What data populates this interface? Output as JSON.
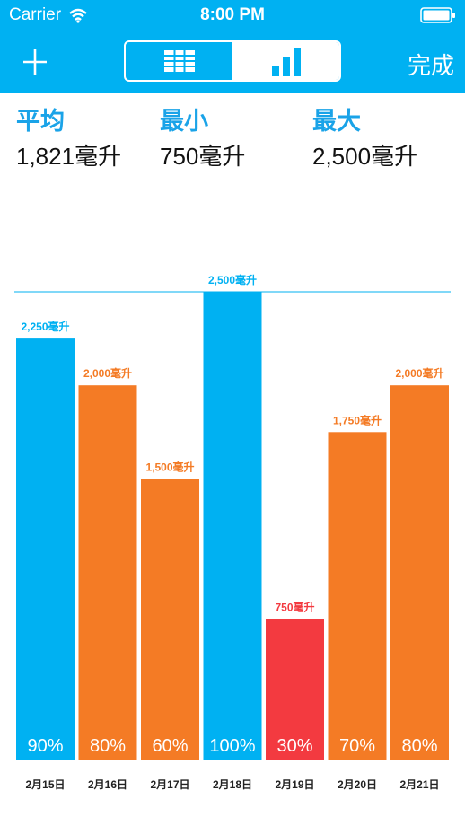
{
  "status_bar": {
    "carrier": "Carrier",
    "time": "8:00 PM",
    "icons": [
      "wifi-icon",
      "battery-icon"
    ]
  },
  "header": {
    "add_icon": "plus-icon",
    "segments": [
      {
        "name": "table-icon",
        "selected": false
      },
      {
        "name": "bar-chart-icon",
        "selected": true
      }
    ],
    "done_label": "完成",
    "background": "#00b1f2"
  },
  "stats": {
    "average": {
      "label": "平均",
      "value": "1,821毫升"
    },
    "min": {
      "label": "最小",
      "value": "750毫升"
    },
    "max": {
      "label": "最大",
      "value": "2,500毫升"
    }
  },
  "chart_data": {
    "type": "bar",
    "categories": [
      "2月15日",
      "2月16日",
      "2月17日",
      "2月18日",
      "2月19日",
      "2月20日",
      "2月21日"
    ],
    "values": [
      2250,
      2000,
      1500,
      2500,
      750,
      1750,
      2000
    ],
    "value_labels": [
      "2,250毫升",
      "2,000毫升",
      "1,500毫升",
      "2,500毫升",
      "750毫升",
      "1,750毫升",
      "2,000毫升"
    ],
    "percent_labels": [
      "90%",
      "80%",
      "60%",
      "100%",
      "30%",
      "70%",
      "80%"
    ],
    "bar_colors": [
      "#00b1f2",
      "#f47b25",
      "#f47b25",
      "#00b1f2",
      "#f33a40",
      "#f47b25",
      "#f47b25"
    ],
    "target_line": 2500,
    "ylim": [
      0,
      2500
    ],
    "grid": false
  }
}
